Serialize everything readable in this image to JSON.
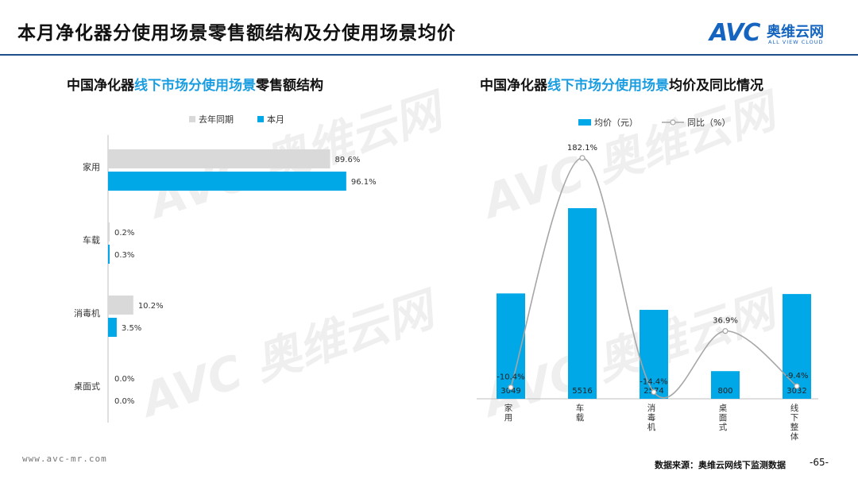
{
  "header": {
    "title": "本月净化器分使用场景零售额结构及分使用场景均价",
    "brand_mark": "AVC",
    "brand_cn": "奥维云网",
    "brand_en": "ALL VIEW CLOUD"
  },
  "left_chart": {
    "title_prefix": "中国净化器",
    "title_highlight": "线下市场分使用场景",
    "title_suffix": "零售额结构",
    "legend": {
      "prev": "去年同期",
      "curr": "本月"
    },
    "colors": {
      "prev": "#d9d9d9",
      "curr": "#00a8e8"
    }
  },
  "right_chart": {
    "title_prefix": "中国净化器",
    "title_highlight": "线下市场分使用场景",
    "title_suffix": "均价及同比情况",
    "legend": {
      "bar": "均价（元）",
      "line": "同比（%）"
    },
    "colors": {
      "bar": "#00a8e8",
      "line": "#a6a6a6"
    }
  },
  "chart_data": [
    {
      "type": "bar",
      "orientation": "horizontal",
      "categories": [
        "家用",
        "车载",
        "消毒机",
        "桌面式"
      ],
      "series": [
        {
          "name": "去年同期",
          "values": [
            89.6,
            0.2,
            10.2,
            0.0
          ],
          "labels": [
            "89.6%",
            "0.2%",
            "10.2%",
            "0.0%"
          ]
        },
        {
          "name": "本月",
          "values": [
            96.1,
            0.3,
            3.5,
            0.0
          ],
          "labels": [
            "96.1%",
            "0.3%",
            "3.5%",
            "0.0%"
          ]
        }
      ],
      "xlim": [
        0,
        100
      ],
      "legend_position": "top"
    },
    {
      "type": "bar",
      "categories": [
        "家用",
        "车载",
        "消毒机",
        "桌面式",
        "线下整体"
      ],
      "series": [
        {
          "name": "均价（元）",
          "type": "bar",
          "values": [
            3049,
            5516,
            2574,
            800,
            3032
          ],
          "labels": [
            "3049",
            "5516",
            "2574",
            "800",
            "3032"
          ]
        },
        {
          "name": "同比（%）",
          "type": "line",
          "values": [
            -10.4,
            182.1,
            -14.4,
            36.9,
            -9.4
          ],
          "labels": [
            "-10.4%",
            "182.1%",
            "-14.4%",
            "36.9%",
            "-9.4%"
          ]
        }
      ],
      "ylim": [
        0,
        6000
      ],
      "y2lim": [
        -20,
        200
      ],
      "legend_position": "top"
    }
  ],
  "footer": {
    "url": "www.avc-mr.com",
    "source": "数据来源：奥维云网线下监测数据",
    "page": "-65-"
  }
}
